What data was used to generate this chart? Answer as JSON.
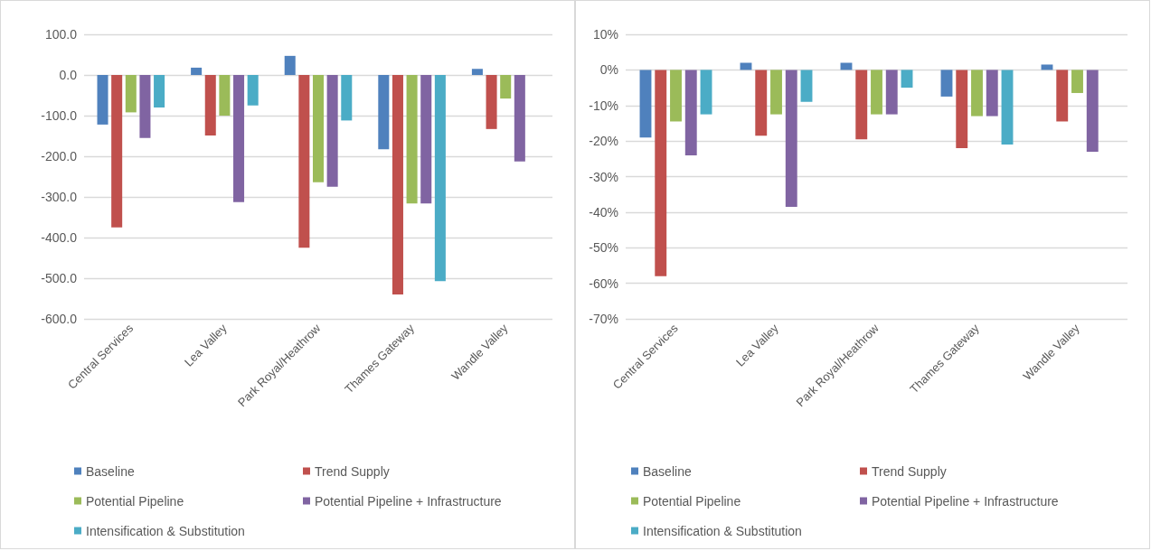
{
  "chart_data": [
    {
      "type": "bar",
      "categories": [
        "Central Services",
        "Lea Valley",
        "Park Royal/Heathrow",
        "Thames Gateway",
        "Wandle Valley"
      ],
      "series": [
        {
          "name": "Baseline",
          "color": "#4f81bd",
          "values": [
            -122,
            18,
            47,
            -183,
            15
          ]
        },
        {
          "name": "Trend Supply",
          "color": "#c0504d",
          "values": [
            -375,
            -149,
            -425,
            -540,
            -133
          ]
        },
        {
          "name": "Potential Pipeline",
          "color": "#9bbb59",
          "values": [
            -92,
            -100,
            -264,
            -316,
            -58
          ]
        },
        {
          "name": "Potential Pipeline + Infrastructure",
          "color": "#8064a2",
          "values": [
            -155,
            -313,
            -275,
            -316,
            -213
          ]
        },
        {
          "name": "Intensification & Substitution",
          "color": "#4bacc6",
          "values": [
            -80,
            -75,
            -112,
            -507,
            null
          ]
        }
      ],
      "ylim": [
        -600,
        100
      ],
      "yticks": [
        {
          "value": -600,
          "label": "-600.0"
        },
        {
          "value": -500,
          "label": "-500.0"
        },
        {
          "value": -400,
          "label": "-400.0"
        },
        {
          "value": -300,
          "label": "-300.0"
        },
        {
          "value": -200,
          "label": "-200.0"
        },
        {
          "value": -100,
          "label": "-100.0"
        },
        {
          "value": 0,
          "label": "0.0"
        },
        {
          "value": 100,
          "label": "100.0"
        }
      ],
      "grid": "y",
      "legend": "bottom"
    },
    {
      "type": "bar",
      "categories": [
        "Central Services",
        "Lea Valley",
        "Park Royal/Heathrow",
        "Thames Gateway",
        "Wandle Valley"
      ],
      "series": [
        {
          "name": "Baseline",
          "color": "#4f81bd",
          "values": [
            -19,
            2,
            2,
            -7.5,
            1.5
          ]
        },
        {
          "name": "Trend Supply",
          "color": "#c0504d",
          "values": [
            -58,
            -18.5,
            -19.5,
            -22,
            -14.5
          ]
        },
        {
          "name": "Potential Pipeline",
          "color": "#9bbb59",
          "values": [
            -14.5,
            -12.5,
            -12.5,
            -13,
            -6.5
          ]
        },
        {
          "name": "Potential Pipeline + Infrastructure",
          "color": "#8064a2",
          "values": [
            -24,
            -38.5,
            -12.5,
            -13,
            -23
          ]
        },
        {
          "name": "Intensification & Substitution",
          "color": "#4bacc6",
          "values": [
            -12.5,
            -9,
            -5,
            -21,
            null
          ]
        }
      ],
      "ylim": [
        -70,
        10
      ],
      "yticks": [
        {
          "value": -70,
          "label": "-70%"
        },
        {
          "value": -60,
          "label": "-60%"
        },
        {
          "value": -50,
          "label": "-50%"
        },
        {
          "value": -40,
          "label": "-40%"
        },
        {
          "value": -30,
          "label": "-30%"
        },
        {
          "value": -20,
          "label": "-20%"
        },
        {
          "value": -10,
          "label": "-10%"
        },
        {
          "value": 0,
          "label": "0%"
        },
        {
          "value": 10,
          "label": "10%"
        }
      ],
      "grid": "y",
      "legend": "bottom"
    }
  ]
}
